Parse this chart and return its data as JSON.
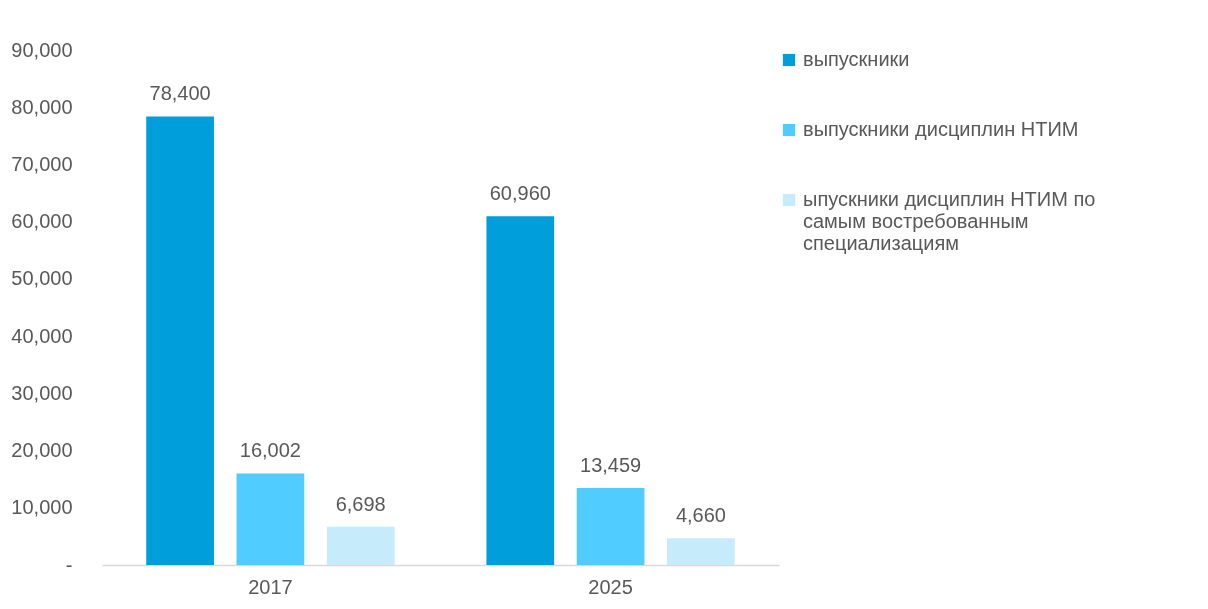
{
  "chart_data": {
    "type": "bar",
    "categories": [
      "2017",
      "2025"
    ],
    "series": [
      {
        "name": "выпускники",
        "color": "#009edb",
        "values": [
          78400,
          60960
        ],
        "value_labels": [
          "78,400",
          "60,960"
        ]
      },
      {
        "name": "выпускники дисциплин НТИМ",
        "color": "#50cdfe",
        "values": [
          16002,
          13459
        ],
        "value_labels": [
          "16,002",
          "13,459"
        ]
      },
      {
        "name": "ыпускники дисциплин НТИМ по самым востребованным специализациям",
        "color": "#c6ecfc",
        "values": [
          6698,
          4660
        ],
        "value_labels": [
          "6,698",
          "4,660"
        ]
      }
    ],
    "ylim": [
      0,
      90000
    ],
    "yticks": [
      {
        "value": 0,
        "label": "-"
      },
      {
        "value": 10000,
        "label": "10,000"
      },
      {
        "value": 20000,
        "label": "20,000"
      },
      {
        "value": 30000,
        "label": "30,000"
      },
      {
        "value": 40000,
        "label": "40,000"
      },
      {
        "value": 50000,
        "label": "50,000"
      },
      {
        "value": 60000,
        "label": "60,000"
      },
      {
        "value": 70000,
        "label": "70,000"
      },
      {
        "value": 80000,
        "label": "80,000"
      },
      {
        "value": 90000,
        "label": "90,000"
      }
    ],
    "legend": "right",
    "grid": false
  }
}
